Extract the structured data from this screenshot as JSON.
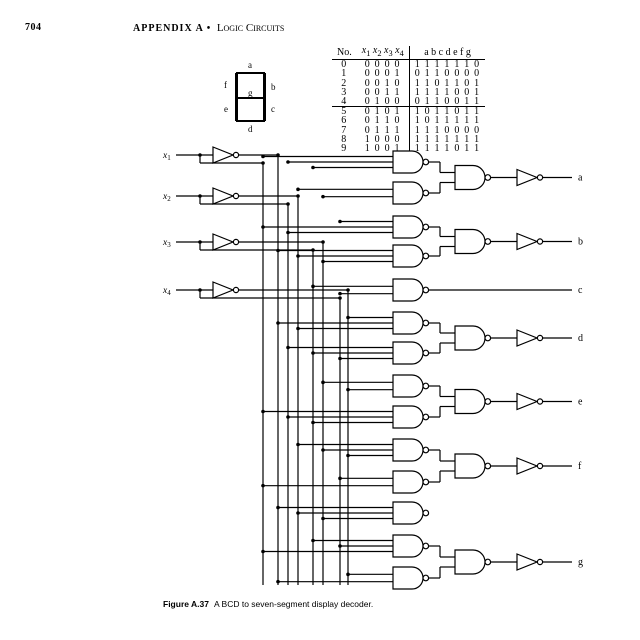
{
  "header": {
    "page_number": "704",
    "running_head": "APPENDIX A",
    "bullet": "•",
    "section": "Logic Circuits"
  },
  "segment_diagram": {
    "labels": [
      "a",
      "b",
      "c",
      "d",
      "e",
      "f",
      "g"
    ]
  },
  "truth_table": {
    "columns": [
      "No.",
      "x1 x2 x3 x4",
      "a b c d e f g"
    ],
    "rows": [
      [
        "0",
        "0 0 0 0",
        "1 1 1 1 1 1 0"
      ],
      [
        "1",
        "0 0 0 1",
        "0 1 1 0 0 0 0"
      ],
      [
        "2",
        "0 0 1 0",
        "1 1 0 1 1 0 1"
      ],
      [
        "3",
        "0 0 1 1",
        "1 1 1 1 0 0 1"
      ],
      [
        "4",
        "0 1 0 0",
        "0 1 1 0 0 1 1"
      ],
      [
        "5",
        "0 1 0 1",
        "1 0 1 1 0 1 1"
      ],
      [
        "6",
        "0 1 1 0",
        "1 0 1 1 1 1 1"
      ],
      [
        "7",
        "0 1 1 1",
        "1 1 1 0 0 0 0"
      ],
      [
        "8",
        "1 0 0 0",
        "1 1 1 1 1 1 1"
      ],
      [
        "9",
        "1 0 0 1",
        "1 1 1 1 0 1 1"
      ]
    ]
  },
  "circuit": {
    "inputs": [
      "x1",
      "x2",
      "x3",
      "x4"
    ],
    "outputs": [
      "a",
      "b",
      "c",
      "d",
      "e",
      "f",
      "g"
    ]
  },
  "caption": {
    "figure": "Figure A.37",
    "text": "A BCD to seven-segment display decoder."
  }
}
